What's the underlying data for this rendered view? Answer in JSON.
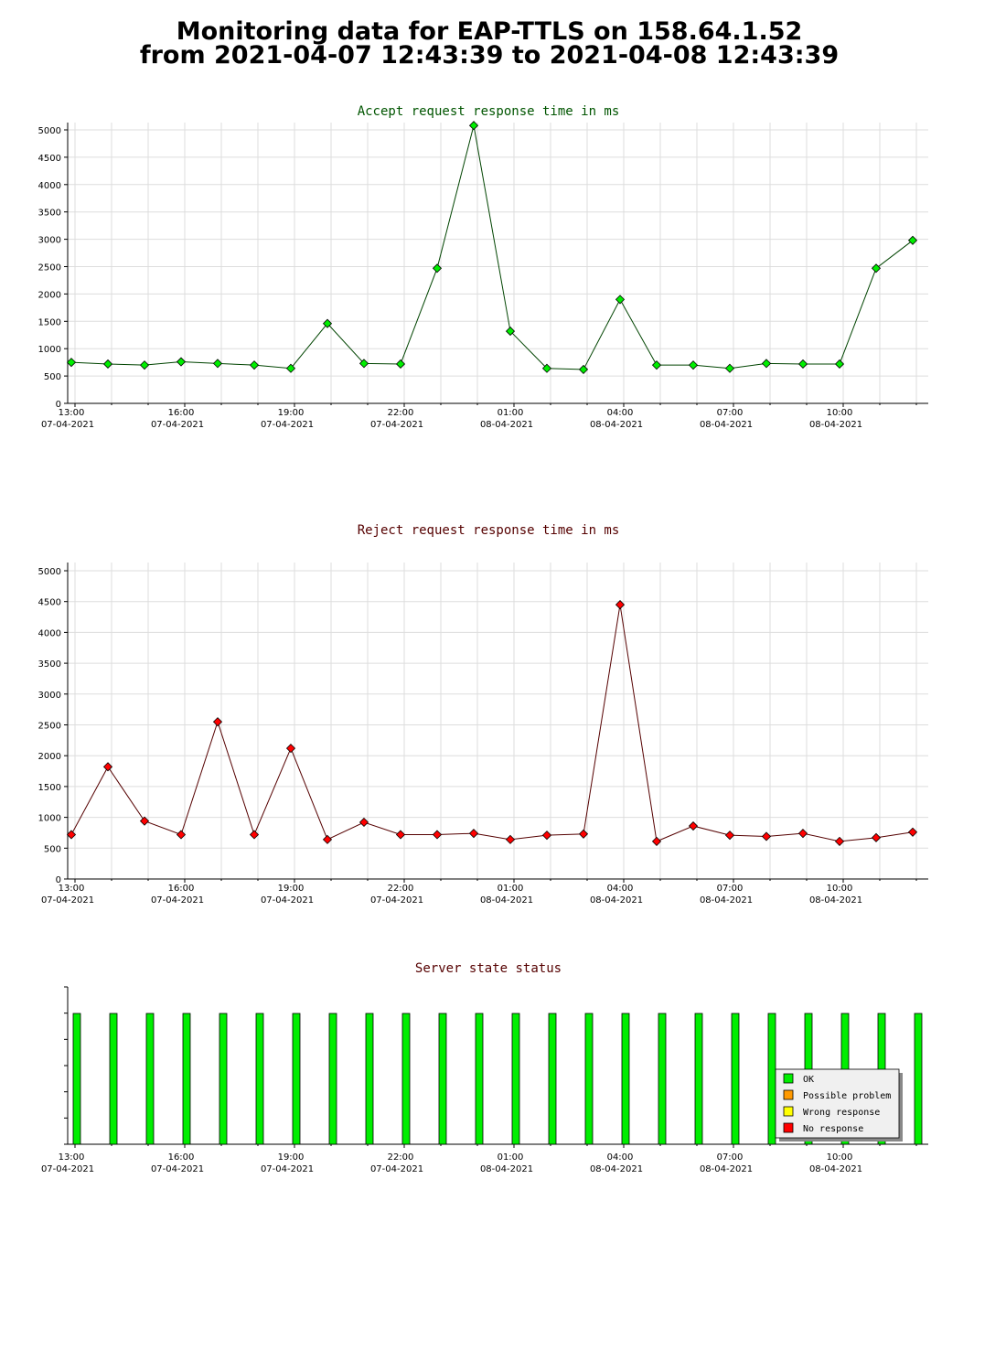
{
  "title": {
    "line1": "Monitoring data for EAP-TTLS on 158.64.1.52",
    "line2": "from 2021-04-07 12:43:39 to 2021-04-08 12:43:39"
  },
  "colors": {
    "accept_marker": "#00ee00",
    "accept_line": "#004400",
    "accept_title": "#005500",
    "reject_marker": "#ff0000",
    "reject_line": "#550000",
    "reject_title": "#550000",
    "grid": "#dddddd",
    "ok": "#00ee00",
    "possible_problem": "#ff9900",
    "wrong_response": "#ffff00",
    "no_response": "#ff0000"
  },
  "time_ticks": [
    {
      "t": "13:00",
      "d": "07-04-2021",
      "h": 0
    },
    {
      "t": "16:00",
      "d": "07-04-2021",
      "h": 3
    },
    {
      "t": "19:00",
      "d": "07-04-2021",
      "h": 6
    },
    {
      "t": "22:00",
      "d": "07-04-2021",
      "h": 9
    },
    {
      "t": "01:00",
      "d": "08-04-2021",
      "h": 12
    },
    {
      "t": "04:00",
      "d": "08-04-2021",
      "h": 15
    },
    {
      "t": "07:00",
      "d": "08-04-2021",
      "h": 18
    },
    {
      "t": "10:00",
      "d": "08-04-2021",
      "h": 21
    }
  ],
  "chart_data": [
    {
      "type": "line",
      "title": "Accept request response time in ms",
      "ylim": [
        0,
        5000
      ],
      "yticks": [
        0,
        500,
        1000,
        1500,
        2000,
        2500,
        3000,
        3500,
        4000,
        4500,
        5000
      ],
      "grid": true,
      "x_hours": [
        -0.1,
        0.9,
        1.9,
        2.9,
        3.9,
        4.9,
        5.9,
        6.9,
        7.9,
        8.9,
        9.9,
        10.9,
        11.9,
        12.9,
        13.9,
        14.9,
        15.9,
        16.9,
        17.9,
        18.9,
        19.9,
        20.9,
        21.9,
        22.9
      ],
      "values": [
        750,
        720,
        700,
        760,
        730,
        700,
        640,
        1460,
        730,
        720,
        2470,
        5080,
        1320,
        640,
        620,
        1900,
        700,
        700,
        640,
        730,
        720,
        720,
        2470,
        2980
      ]
    },
    {
      "type": "line",
      "title": "Reject request response time in ms",
      "ylim": [
        0,
        5000
      ],
      "yticks": [
        0,
        500,
        1000,
        1500,
        2000,
        2500,
        3000,
        3500,
        4000,
        4500,
        5000
      ],
      "grid": true,
      "x_hours": [
        -0.1,
        0.9,
        1.9,
        2.9,
        3.9,
        4.9,
        5.9,
        6.9,
        7.9,
        8.9,
        9.9,
        10.9,
        11.9,
        12.9,
        13.9,
        14.9,
        15.9,
        16.9,
        17.9,
        18.9,
        19.9,
        20.9,
        21.9,
        22.9
      ],
      "values": [
        720,
        1820,
        940,
        720,
        2550,
        720,
        2120,
        640,
        920,
        720,
        720,
        740,
        640,
        710,
        730,
        4450,
        610,
        860,
        710,
        690,
        740,
        610,
        670,
        760
      ]
    },
    {
      "type": "bar",
      "title": "Server state status",
      "x_hours": [
        0.0,
        1.0,
        2.0,
        3.0,
        4.0,
        5.0,
        6.0,
        7.0,
        8.0,
        9.0,
        10.0,
        11.0,
        12.0,
        13.0,
        14.0,
        15.0,
        16.0,
        17.0,
        18.0,
        19.0,
        20.0,
        21.0,
        22.0,
        23.0
      ],
      "states": [
        "OK",
        "OK",
        "OK",
        "OK",
        "OK",
        "OK",
        "OK",
        "OK",
        "OK",
        "OK",
        "OK",
        "OK",
        "OK",
        "OK",
        "OK",
        "OK",
        "OK",
        "OK",
        "OK",
        "OK",
        "OK",
        "OK",
        "OK",
        "OK"
      ],
      "legend_position": "bottom-right",
      "legend": [
        {
          "label": "OK",
          "color": "#00ee00"
        },
        {
          "label": "Possible problem",
          "color": "#ff9900"
        },
        {
          "label": "Wrong response",
          "color": "#ffff00"
        },
        {
          "label": "No response",
          "color": "#ff0000"
        }
      ]
    }
  ]
}
